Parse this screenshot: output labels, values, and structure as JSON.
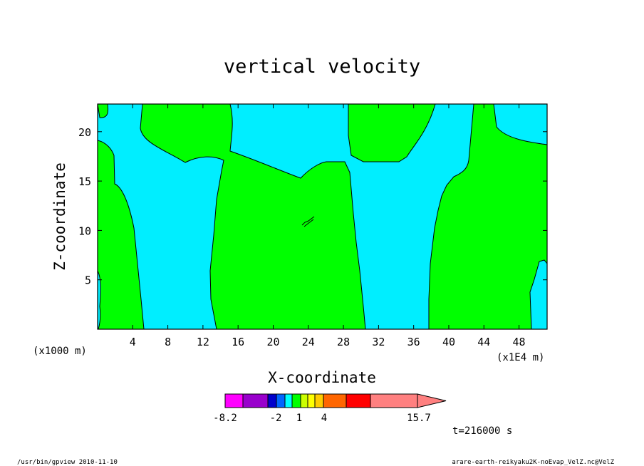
{
  "chart_data": {
    "type": "heatmap",
    "title": "vertical velocity",
    "xlabel": "X-coordinate",
    "ylabel": "Z-coordinate",
    "x_unit_note": "(x1E4 m)",
    "y_unit_note": "(x1000 m)",
    "xlim": [
      0,
      51.2
    ],
    "ylim": [
      0,
      22.8
    ],
    "x_ticks": [
      4,
      8,
      12,
      16,
      20,
      24,
      28,
      32,
      36,
      40,
      44,
      48
    ],
    "y_ticks": [
      5,
      10,
      15,
      20
    ],
    "field_colors": {
      "positive": "#00ff00",
      "negative": "#00eeff",
      "contour": "#000000"
    },
    "colorbar": {
      "colors": [
        "#ff00ff",
        "#9900cc",
        "#0000cc",
        "#0066ff",
        "#00ffff",
        "#00ff00",
        "#ccff00",
        "#ffff00",
        "#ffcc00",
        "#ff6600",
        "#ff0000",
        "#ff8080"
      ],
      "labels": [
        "-8.2",
        "-2",
        "1",
        "4",
        "15.7"
      ]
    },
    "time_label": "t=216000 s"
  },
  "footer": {
    "left": "/usr/bin/gpview  2010-11-10",
    "right": "arare-earth-reikyaku2K-noEvap_VelZ.nc@VelZ"
  }
}
